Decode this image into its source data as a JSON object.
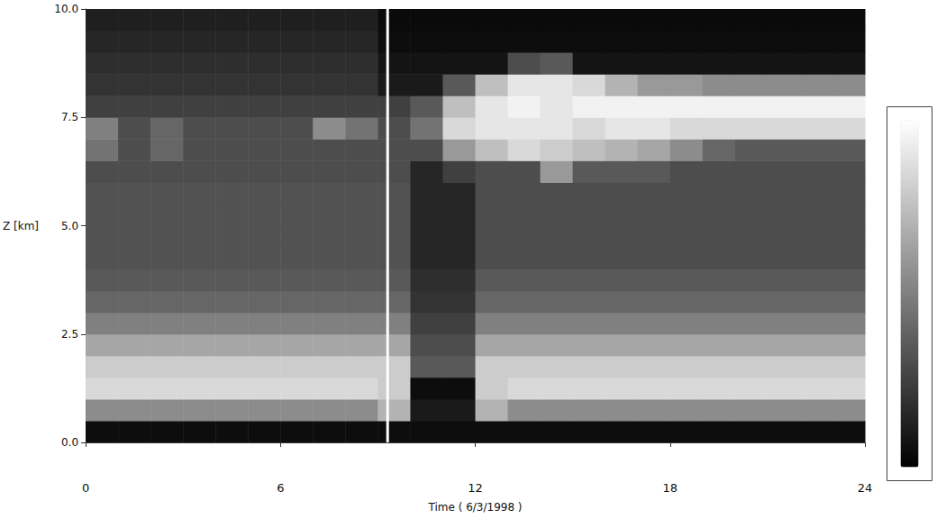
{
  "chart_data": {
    "type": "heatmap",
    "x_label": "Time ( 6/3/1998 )",
    "y_label": "Z [km]",
    "xlim": [
      0,
      24
    ],
    "ylim": [
      0,
      10
    ],
    "xticks": [
      0,
      6,
      12,
      18,
      24
    ],
    "yticks": [
      {
        "value": 0,
        "label": "0.0"
      },
      {
        "value": 2.5,
        "label": "2.5"
      },
      {
        "value": 5,
        "label": "5.0"
      },
      {
        "value": 7.5,
        "label": "7.5"
      },
      {
        "value": 10,
        "label": "10.0"
      }
    ],
    "grid": false,
    "vline": 9.3,
    "x_bins": [
      0,
      1,
      2,
      3,
      4,
      5,
      6,
      7,
      8,
      9,
      10,
      11,
      12,
      13,
      14,
      15,
      16,
      17,
      18,
      19,
      20,
      21,
      22,
      23,
      24
    ],
    "z_bins": [
      0,
      0.5,
      1,
      1.5,
      2,
      2.5,
      3,
      3.5,
      4,
      4.5,
      5,
      5.5,
      6,
      6.5,
      7,
      7.5,
      8,
      8.5,
      9,
      9.5,
      10
    ],
    "values": [
      [
        0.05,
        0.05,
        0.05,
        0.05,
        0.05,
        0.05,
        0.05,
        0.05,
        0.05,
        0.05,
        0.05,
        0.05,
        0.05,
        0.05,
        0.05,
        0.05,
        0.05,
        0.05,
        0.05,
        0.05,
        0.05,
        0.05,
        0.05,
        0.05
      ],
      [
        0.55,
        0.55,
        0.55,
        0.55,
        0.55,
        0.55,
        0.55,
        0.55,
        0.55,
        0.7,
        0.1,
        0.1,
        0.7,
        0.55,
        0.55,
        0.55,
        0.55,
        0.55,
        0.55,
        0.55,
        0.55,
        0.55,
        0.55,
        0.55
      ],
      [
        0.85,
        0.85,
        0.85,
        0.85,
        0.85,
        0.85,
        0.85,
        0.85,
        0.85,
        0.8,
        0.05,
        0.05,
        0.8,
        0.85,
        0.85,
        0.85,
        0.85,
        0.85,
        0.85,
        0.85,
        0.85,
        0.85,
        0.85,
        0.85
      ],
      [
        0.8,
        0.8,
        0.8,
        0.8,
        0.8,
        0.8,
        0.8,
        0.8,
        0.8,
        0.8,
        0.35,
        0.35,
        0.8,
        0.8,
        0.8,
        0.8,
        0.8,
        0.8,
        0.8,
        0.8,
        0.8,
        0.8,
        0.8,
        0.8
      ],
      [
        0.65,
        0.65,
        0.65,
        0.65,
        0.65,
        0.65,
        0.65,
        0.65,
        0.65,
        0.65,
        0.3,
        0.3,
        0.65,
        0.65,
        0.65,
        0.65,
        0.65,
        0.65,
        0.65,
        0.65,
        0.65,
        0.65,
        0.65,
        0.65
      ],
      [
        0.5,
        0.5,
        0.5,
        0.5,
        0.5,
        0.5,
        0.5,
        0.5,
        0.5,
        0.5,
        0.25,
        0.25,
        0.5,
        0.5,
        0.5,
        0.5,
        0.5,
        0.5,
        0.5,
        0.5,
        0.5,
        0.5,
        0.5,
        0.5
      ],
      [
        0.4,
        0.4,
        0.4,
        0.4,
        0.4,
        0.4,
        0.4,
        0.4,
        0.4,
        0.4,
        0.2,
        0.2,
        0.4,
        0.4,
        0.4,
        0.4,
        0.4,
        0.4,
        0.4,
        0.4,
        0.4,
        0.4,
        0.4,
        0.4
      ],
      [
        0.35,
        0.35,
        0.35,
        0.35,
        0.35,
        0.35,
        0.35,
        0.35,
        0.35,
        0.35,
        0.18,
        0.18,
        0.35,
        0.35,
        0.35,
        0.35,
        0.35,
        0.35,
        0.35,
        0.35,
        0.35,
        0.35,
        0.35,
        0.35
      ],
      [
        0.32,
        0.32,
        0.32,
        0.32,
        0.32,
        0.32,
        0.32,
        0.32,
        0.32,
        0.32,
        0.15,
        0.15,
        0.3,
        0.3,
        0.3,
        0.3,
        0.3,
        0.3,
        0.3,
        0.3,
        0.3,
        0.3,
        0.3,
        0.3
      ],
      [
        0.32,
        0.32,
        0.32,
        0.32,
        0.32,
        0.32,
        0.32,
        0.32,
        0.32,
        0.32,
        0.15,
        0.15,
        0.3,
        0.3,
        0.3,
        0.3,
        0.3,
        0.3,
        0.3,
        0.3,
        0.3,
        0.3,
        0.3,
        0.3
      ],
      [
        0.32,
        0.32,
        0.32,
        0.32,
        0.32,
        0.32,
        0.32,
        0.32,
        0.32,
        0.32,
        0.15,
        0.15,
        0.3,
        0.3,
        0.3,
        0.3,
        0.3,
        0.3,
        0.3,
        0.3,
        0.3,
        0.3,
        0.3,
        0.3
      ],
      [
        0.32,
        0.32,
        0.32,
        0.32,
        0.32,
        0.32,
        0.32,
        0.32,
        0.32,
        0.32,
        0.15,
        0.15,
        0.3,
        0.3,
        0.3,
        0.3,
        0.3,
        0.3,
        0.3,
        0.3,
        0.3,
        0.3,
        0.3,
        0.3
      ],
      [
        0.3,
        0.3,
        0.3,
        0.3,
        0.3,
        0.3,
        0.3,
        0.3,
        0.3,
        0.3,
        0.15,
        0.25,
        0.3,
        0.3,
        0.6,
        0.35,
        0.35,
        0.35,
        0.3,
        0.3,
        0.3,
        0.3,
        0.3,
        0.3
      ],
      [
        0.45,
        0.3,
        0.4,
        0.3,
        0.3,
        0.3,
        0.3,
        0.3,
        0.3,
        0.3,
        0.3,
        0.6,
        0.75,
        0.85,
        0.8,
        0.75,
        0.7,
        0.65,
        0.55,
        0.4,
        0.35,
        0.35,
        0.35,
        0.35
      ],
      [
        0.5,
        0.3,
        0.4,
        0.3,
        0.3,
        0.3,
        0.3,
        0.55,
        0.45,
        0.3,
        0.45,
        0.85,
        0.9,
        0.9,
        0.9,
        0.85,
        0.9,
        0.9,
        0.85,
        0.85,
        0.85,
        0.85,
        0.85,
        0.85
      ],
      [
        0.25,
        0.25,
        0.25,
        0.25,
        0.25,
        0.25,
        0.25,
        0.25,
        0.25,
        0.25,
        0.35,
        0.75,
        0.9,
        0.95,
        0.9,
        0.95,
        0.95,
        0.95,
        0.95,
        0.95,
        0.95,
        0.95,
        0.95,
        0.95
      ],
      [
        0.2,
        0.2,
        0.2,
        0.2,
        0.2,
        0.2,
        0.2,
        0.2,
        0.2,
        0.1,
        0.1,
        0.35,
        0.75,
        0.9,
        0.9,
        0.85,
        0.7,
        0.6,
        0.6,
        0.55,
        0.55,
        0.55,
        0.55,
        0.55
      ],
      [
        0.18,
        0.18,
        0.18,
        0.18,
        0.18,
        0.18,
        0.18,
        0.18,
        0.18,
        0.08,
        0.08,
        0.08,
        0.08,
        0.3,
        0.35,
        0.08,
        0.08,
        0.08,
        0.08,
        0.08,
        0.08,
        0.08,
        0.08,
        0.08
      ],
      [
        0.15,
        0.15,
        0.15,
        0.15,
        0.15,
        0.15,
        0.15,
        0.15,
        0.15,
        0.05,
        0.05,
        0.05,
        0.05,
        0.05,
        0.05,
        0.05,
        0.05,
        0.05,
        0.05,
        0.05,
        0.05,
        0.05,
        0.05,
        0.05
      ],
      [
        0.12,
        0.12,
        0.12,
        0.12,
        0.12,
        0.12,
        0.12,
        0.12,
        0.12,
        0.04,
        0.04,
        0.04,
        0.04,
        0.04,
        0.04,
        0.04,
        0.04,
        0.04,
        0.04,
        0.04,
        0.04,
        0.04,
        0.04,
        0.04
      ]
    ],
    "colorbar": {
      "range": [
        0,
        1
      ]
    }
  }
}
